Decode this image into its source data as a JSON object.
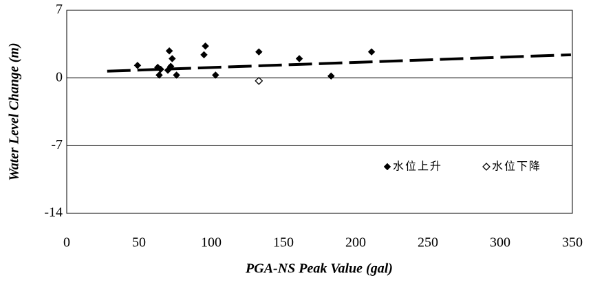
{
  "chart_data": {
    "type": "scatter",
    "x_label": "PGA-NS Peak Value (gal)",
    "y_label": "Water Level Change (m)",
    "series": [
      {
        "name": "水位上升",
        "color": "#000000",
        "marker": "filled-diamond",
        "x": [
          49,
          63,
          64,
          65,
          70,
          71,
          72,
          73,
          76,
          95,
          96,
          103,
          133,
          161,
          183,
          211
        ],
        "values": [
          1.3,
          1.1,
          0.3,
          0.9,
          0.8,
          2.8,
          1.2,
          2.0,
          0.3,
          2.4,
          3.3,
          0.3,
          2.7,
          2.0,
          0.2,
          2.7
        ]
      },
      {
        "name": "水位下降",
        "color": "#000000",
        "marker": "open-diamond",
        "x": [
          133
        ],
        "values": [
          -0.3
        ]
      }
    ],
    "trendline": {
      "x": [
        28,
        349
      ],
      "values": [
        0.7,
        2.4
      ]
    },
    "xlim": [
      0,
      350
    ],
    "xticks": [
      0,
      50,
      100,
      150,
      200,
      250,
      300,
      350
    ],
    "ylim": [
      -14,
      7
    ],
    "yticks": [
      -14,
      -7,
      0,
      7
    ],
    "grid": true,
    "legend": "lower-right"
  }
}
